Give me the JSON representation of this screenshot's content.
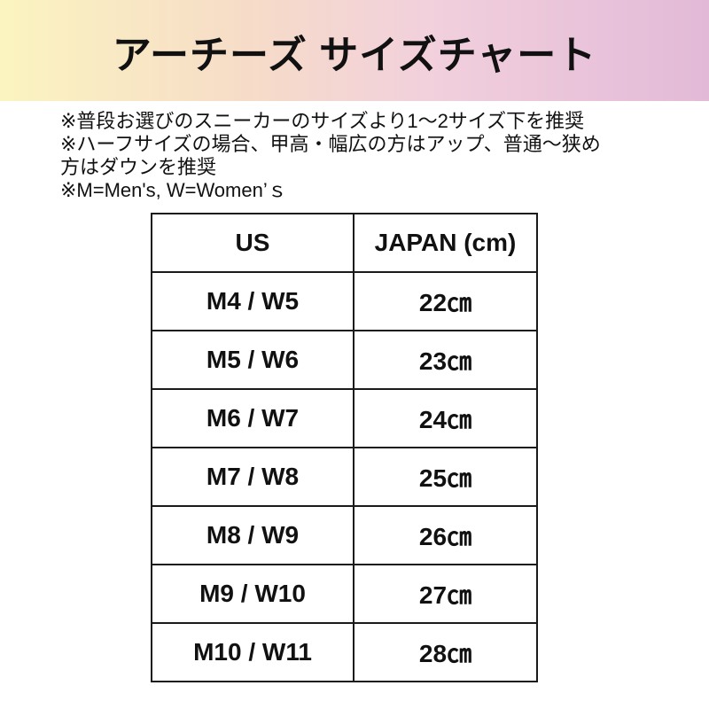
{
  "title": "アーチーズ サイズチャート",
  "notes": [
    "※普段お選びのスニーカーのサイズより1～2サイズ下を推奨",
    "※ハーフサイズの場合、甲高・幅広の方はアップ、普通～狭め",
    "方はダウンを推奨",
    "※M=Men's, W=Women’ｓ"
  ],
  "colors": {
    "banner_left": "#fbf4c0",
    "banner_right": "#e2bad8"
  },
  "table": {
    "headers": [
      "US",
      "JAPAN (cm)"
    ],
    "rows": [
      [
        "M4 / W5",
        "22㎝"
      ],
      [
        "M5 / W6",
        "23㎝"
      ],
      [
        "M6 / W7",
        "24㎝"
      ],
      [
        "M7 / W8",
        "25㎝"
      ],
      [
        "M8 / W9",
        "26㎝"
      ],
      [
        "M9 / W10",
        "27㎝"
      ],
      [
        "M10 / W11",
        "28㎝"
      ]
    ]
  }
}
